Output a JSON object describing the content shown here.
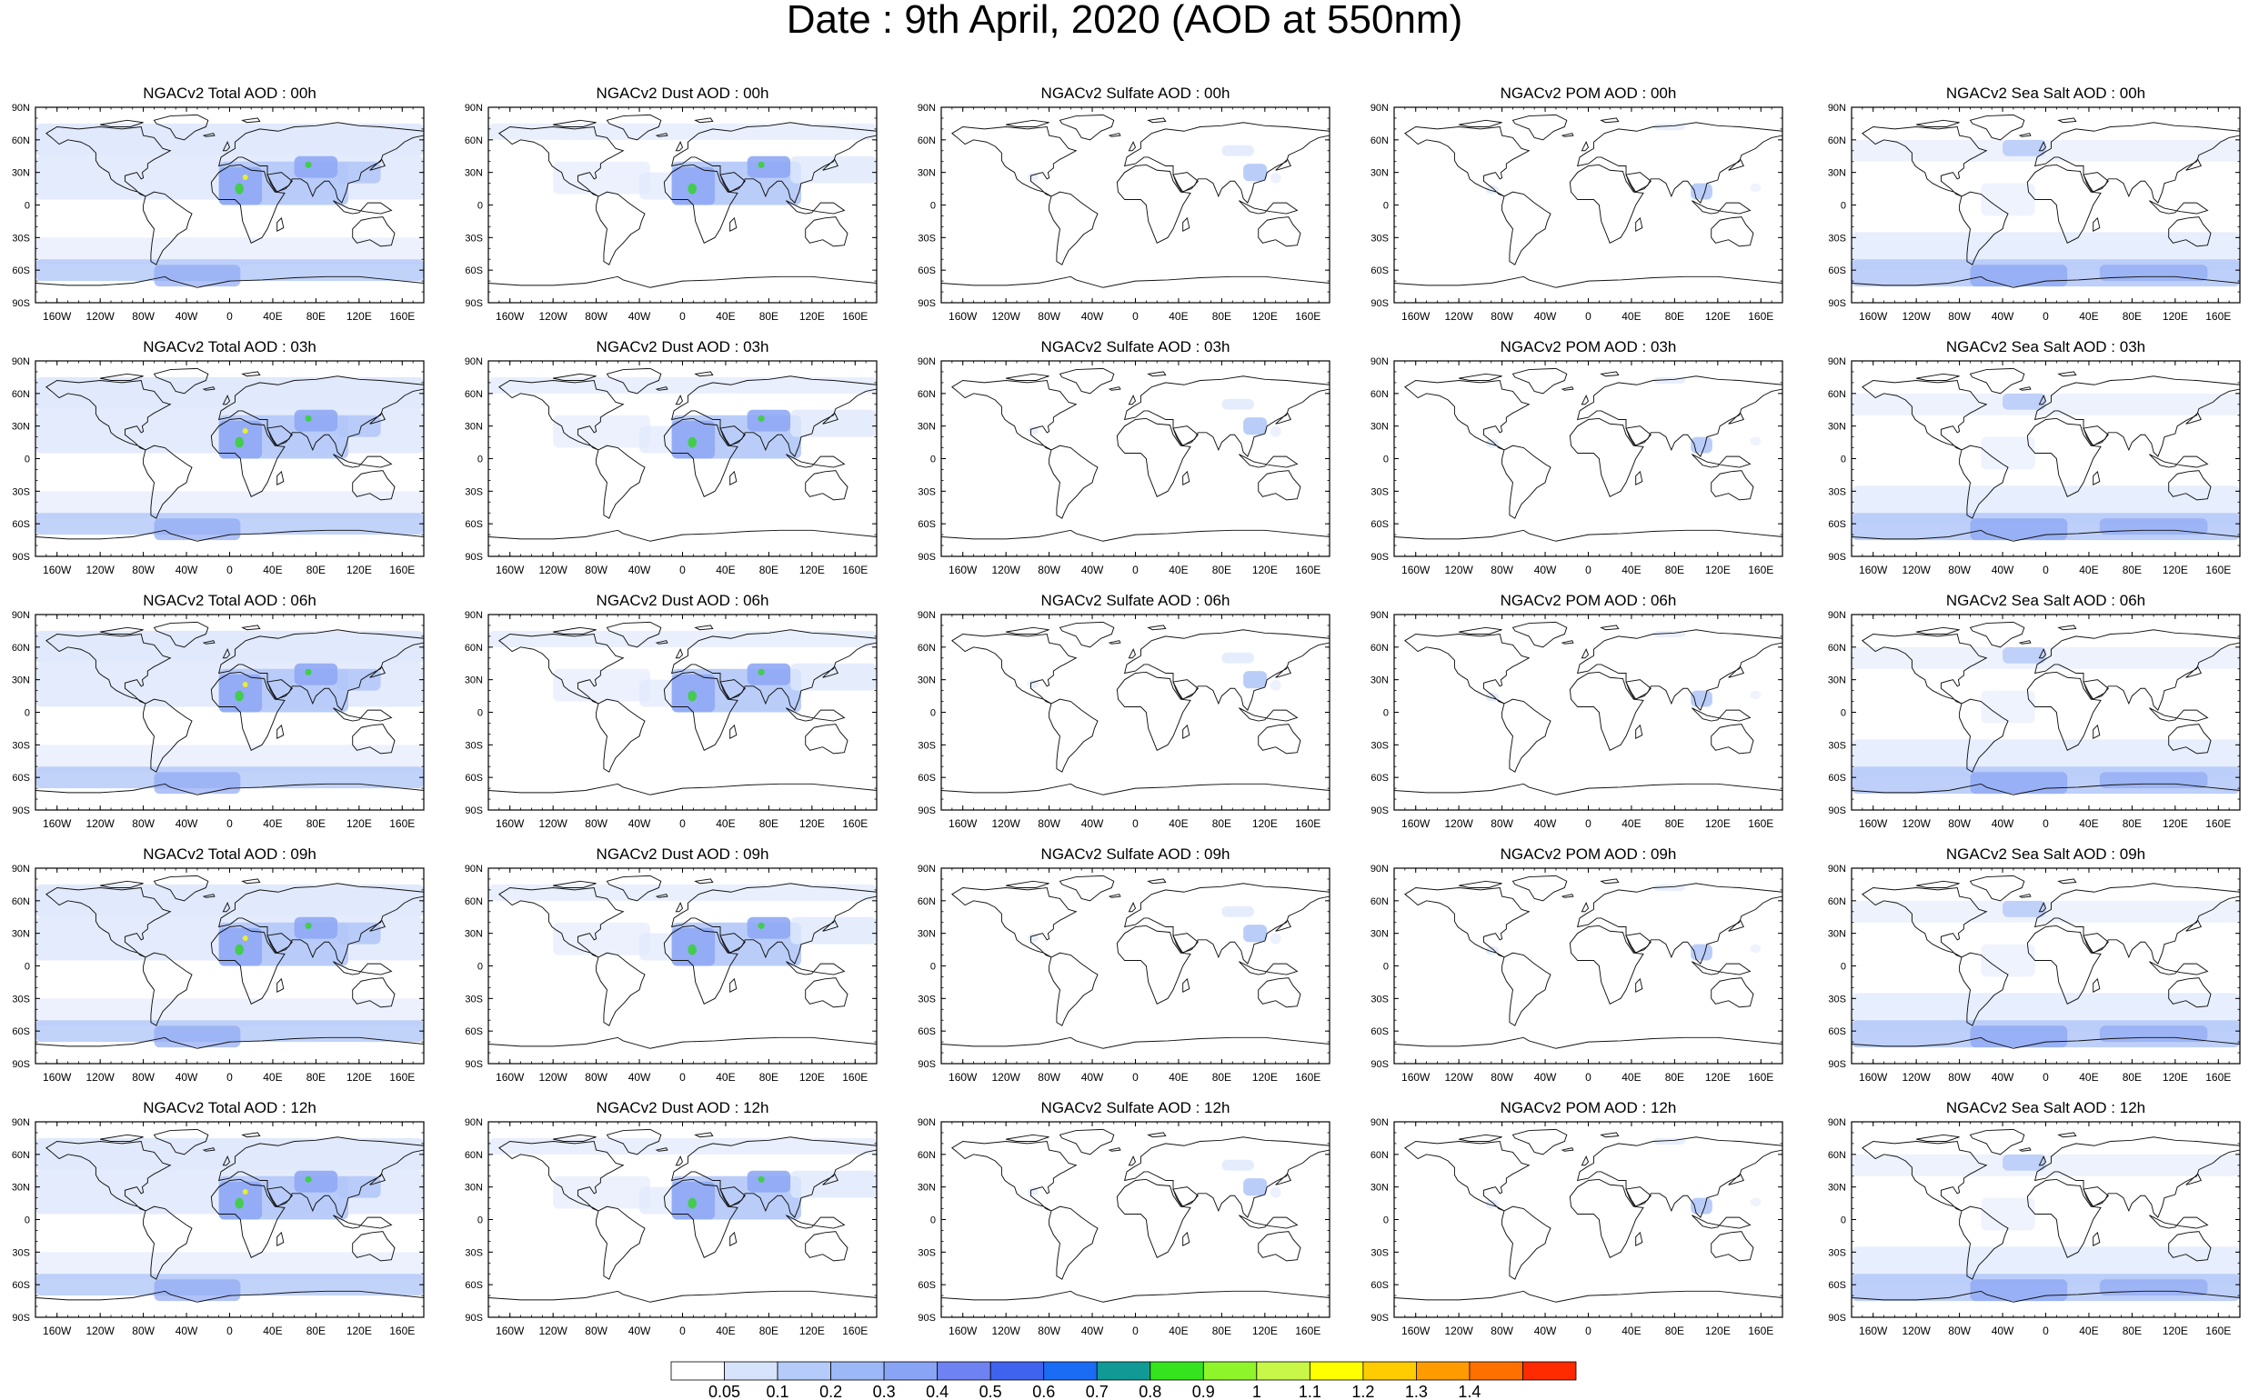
{
  "title": "Date : 9th April, 2020 (AOD at 550nm)",
  "panel_titles": [
    [
      "NGACv2 Total AOD : 00h",
      "NGACv2 Dust AOD : 00h",
      "NGACv2 Sulfate AOD : 00h",
      "NGACv2 POM AOD : 00h",
      "NGACv2 Sea Salt AOD : 00h"
    ],
    [
      "NGACv2 Total AOD : 03h",
      "NGACv2 Dust AOD : 03h",
      "NGACv2 Sulfate AOD : 03h",
      "NGACv2 POM AOD : 03h",
      "NGACv2 Sea Salt AOD : 03h"
    ],
    [
      "NGACv2 Total AOD : 06h",
      "NGACv2 Dust AOD : 06h",
      "NGACv2 Sulfate AOD : 06h",
      "NGACv2 POM AOD : 06h",
      "NGACv2 Sea Salt AOD : 06h"
    ],
    [
      "NGACv2 Total AOD : 09h",
      "NGACv2 Dust AOD : 09h",
      "NGACv2 Sulfate AOD : 09h",
      "NGACv2 POM AOD : 09h",
      "NGACv2 Sea Salt  AOD : 09h"
    ],
    [
      "NGACv2 Total AOD :  12h",
      "NGACv2 Dust AOD : 12h",
      "NGACv2 Sulfate AOD : 12h",
      "NGACv2 POM  AOD : 12h",
      "NGACv2 Sea Salt AOD : 12h"
    ]
  ],
  "panel_types": [
    "total",
    "dust",
    "sulfate",
    "pom",
    "seasalt"
  ],
  "lat_labels": [
    "90N",
    "60N",
    "30N",
    "0",
    "30S",
    "60S",
    "90S"
  ],
  "lon_labels": [
    "160W",
    "120W",
    "80W",
    "40W",
    "0",
    "40E",
    "80E",
    "120E",
    "160E"
  ],
  "colorbar": {
    "labels": [
      "0.05",
      "0.1",
      "0.2",
      "0.3",
      "0.4",
      "0.5",
      "0.6",
      "0.7",
      "0.8",
      "0.9",
      "1",
      "1.1",
      "1.2",
      "1.3",
      "1.4"
    ],
    "colors": [
      "#ffffff",
      "#d7e3fb",
      "#b5cbf9",
      "#9cb8f7",
      "#8aa4f5",
      "#6f82f1",
      "#3f62ef",
      "#1a6cf5",
      "#119a95",
      "#35e41c",
      "#8ef52a",
      "#c8f74a",
      "#ffff00",
      "#fecc00",
      "#fe9b00",
      "#fe7000",
      "#fe2a00"
    ]
  },
  "palette": {
    "light": "#dfe8fc",
    "mid": "#b3c8f8",
    "strong": "#8fa8f4",
    "deep": "#5e76ee",
    "green": "#3bcf3b",
    "yellow": "#f4f41a"
  }
}
